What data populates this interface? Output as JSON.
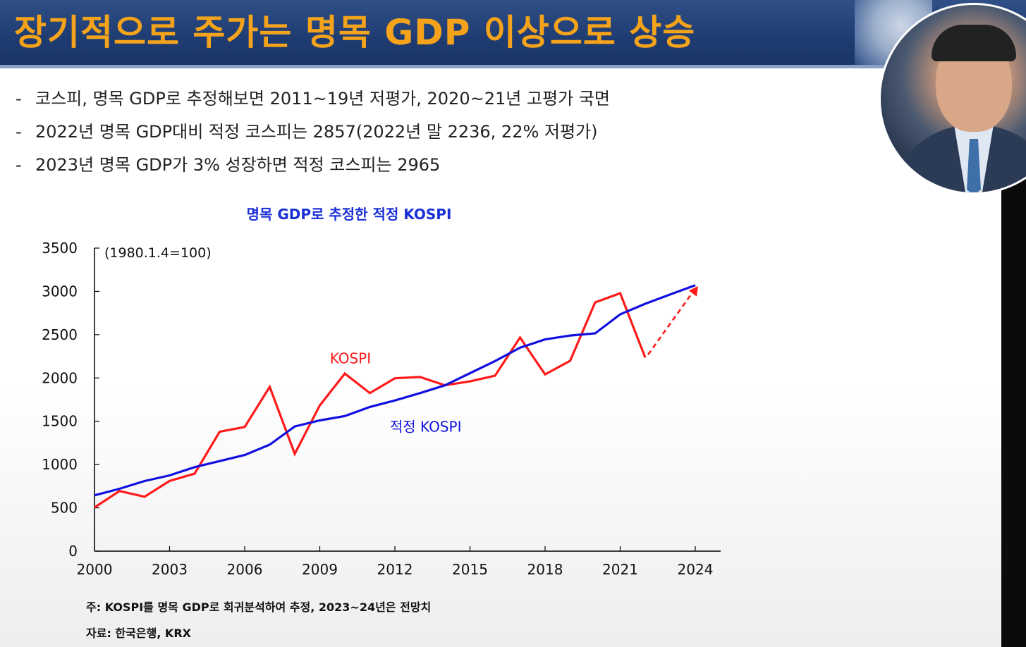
{
  "slide": {
    "title": "장기적으로 주가는 명목 GDP 이상으로 상승",
    "bullets": [
      "코스피, 명목 GDP로 추정해보면 2011~19년 저평가, 2020~21년 고평가 국면",
      "2022년 명목 GDP대비 적정 코스피는 2857(2022년 말 2236, 22% 저평가)",
      "2023년 명목 GDP가 3% 성장하면 적정 코스피는 2965"
    ],
    "bullet_marker": "-",
    "note": "주:  KOSPI를  명목 GDP로 회귀분석하여 추정, 2023~24년은 전망치",
    "source": "자료: 한국은행, KRX"
  },
  "chart_data": {
    "type": "line",
    "title": "명목 GDP로 추정한 적정 KOSPI",
    "unit_label": "(1980.1.4=100)",
    "xlim": [
      2000,
      2024
    ],
    "ylim": [
      0,
      3500
    ],
    "x_ticks": [
      2000,
      2003,
      2006,
      2009,
      2012,
      2015,
      2018,
      2021,
      2024
    ],
    "y_ticks": [
      0,
      500,
      1000,
      1500,
      2000,
      2500,
      3000,
      3500
    ],
    "grid": false,
    "series": [
      {
        "name": "KOSPI",
        "color": "#ff1a1a",
        "x": [
          2000,
          2001,
          2002,
          2003,
          2004,
          2005,
          2006,
          2007,
          2008,
          2009,
          2010,
          2011,
          2012,
          2013,
          2014,
          2015,
          2016,
          2017,
          2018,
          2019,
          2020,
          2021,
          2022
        ],
        "y": [
          505,
          694,
          628,
          811,
          895,
          1379,
          1434,
          1897,
          1124,
          1683,
          2051,
          1826,
          1997,
          2011,
          1916,
          1961,
          2026,
          2467,
          2041,
          2198,
          2873,
          2978,
          2236
        ]
      },
      {
        "name": "적정 KOSPI",
        "color": "#1010e0",
        "x": [
          2000,
          2001,
          2002,
          2003,
          2004,
          2005,
          2006,
          2007,
          2008,
          2009,
          2010,
          2011,
          2012,
          2013,
          2014,
          2015,
          2016,
          2017,
          2018,
          2019,
          2020,
          2021,
          2022,
          2023,
          2024
        ],
        "y": [
          645,
          720,
          810,
          875,
          970,
          1040,
          1110,
          1230,
          1440,
          1510,
          1560,
          1665,
          1740,
          1825,
          1915,
          2055,
          2195,
          2350,
          2445,
          2490,
          2515,
          2735,
          2857,
          2965,
          3070
        ]
      }
    ],
    "forecast_arrow": {
      "color": "#ff1a1a",
      "from": [
        2022,
        2236
      ],
      "to": [
        2024,
        3060
      ]
    }
  }
}
